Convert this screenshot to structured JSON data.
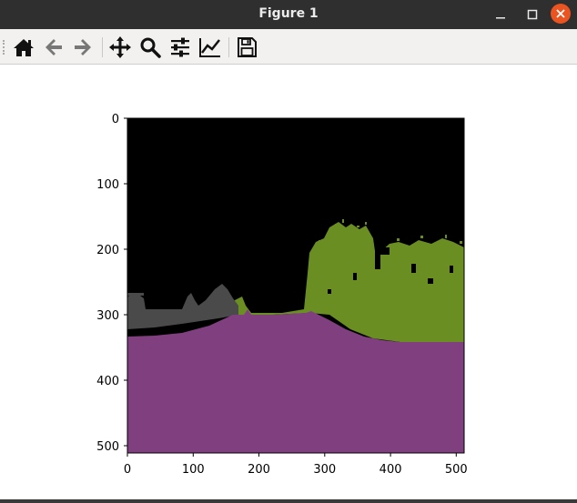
{
  "window": {
    "title": "Figure 1"
  },
  "toolbar": {
    "tools": [
      "home-icon",
      "back-arrow-icon",
      "forward-arrow-icon",
      "pan-move-icon",
      "zoom-magnifier-icon",
      "configure-subplots-icon",
      "edit-axis-icon",
      "save-floppy-icon"
    ]
  },
  "chart_data": {
    "type": "image",
    "xticks": [
      "0",
      "100",
      "200",
      "300",
      "400",
      "500"
    ],
    "yticks": [
      "0",
      "100",
      "200",
      "300",
      "400",
      "500"
    ],
    "xlim": [
      0,
      512
    ],
    "ylim": [
      512,
      0
    ],
    "regions": [
      {
        "label": "sky",
        "color": "#000000"
      },
      {
        "label": "vegetation",
        "color": "#6b8e23"
      },
      {
        "label": "road",
        "color": "#80407f"
      },
      {
        "label": "building",
        "color": "#4a4a4a"
      }
    ]
  }
}
